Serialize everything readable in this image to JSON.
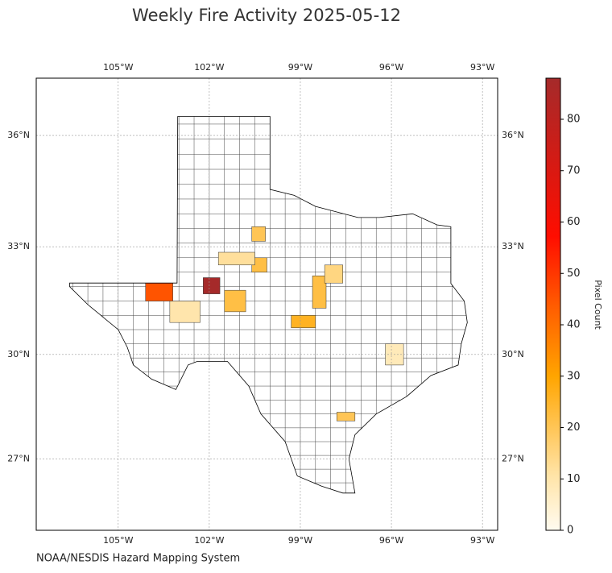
{
  "chart_data": {
    "type": "map",
    "title": "Weekly Fire Activity 2025-05-12",
    "footer": "NOAA/NESDIS Hazard Mapping System",
    "xlim": [
      -107.7,
      -92.5
    ],
    "ylim": [
      24.9,
      37.5
    ],
    "xticks": [
      {
        "value": -105,
        "label": "105°W"
      },
      {
        "value": -102,
        "label": "102°W"
      },
      {
        "value": -99,
        "label": "99°W"
      },
      {
        "value": -96,
        "label": "96°W"
      },
      {
        "value": -93,
        "label": "93°W"
      }
    ],
    "yticks": [
      {
        "value": 27,
        "label": "27°N"
      },
      {
        "value": 30,
        "label": "30°N"
      },
      {
        "value": 33,
        "label": "33°N"
      },
      {
        "value": 36,
        "label": "36°N"
      }
    ],
    "grid": true,
    "values": [
      88,
      45,
      22,
      22,
      20,
      26,
      22,
      20,
      10,
      8,
      12,
      15
    ],
    "colorbar": {
      "label": "Pixel Count",
      "lim": [
        0,
        88
      ],
      "ticks": [
        0,
        10,
        20,
        30,
        40,
        50,
        60,
        70,
        80
      ]
    }
  }
}
